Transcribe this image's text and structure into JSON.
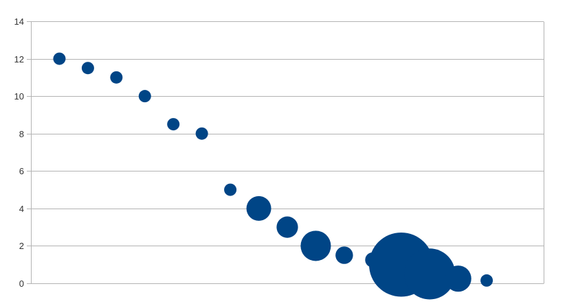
{
  "chart_data": {
    "type": "scatter",
    "title": "",
    "xlabel": "",
    "ylabel": "",
    "ylim": [
      0,
      14
    ],
    "xlim": [
      0,
      18
    ],
    "y_ticks": [
      "0",
      "2",
      "4",
      "6",
      "8",
      "10",
      "12",
      "14"
    ],
    "grid": true,
    "legend": "none",
    "point_color": "#004586",
    "grid_color": "#b3b3b3",
    "points": [
      {
        "x": 1,
        "y": 12,
        "size": 1
      },
      {
        "x": 2,
        "y": 11.5,
        "size": 1
      },
      {
        "x": 3,
        "y": 11,
        "size": 1
      },
      {
        "x": 4,
        "y": 10,
        "size": 1
      },
      {
        "x": 5,
        "y": 8.5,
        "size": 1
      },
      {
        "x": 6,
        "y": 8,
        "size": 1
      },
      {
        "x": 7,
        "y": 5,
        "size": 1
      },
      {
        "x": 8,
        "y": 4,
        "size": 4
      },
      {
        "x": 9,
        "y": 3,
        "size": 3
      },
      {
        "x": 10,
        "y": 2,
        "size": 6
      },
      {
        "x": 11,
        "y": 1.5,
        "size": 2
      },
      {
        "x": 12,
        "y": 1.25,
        "size": 1.5
      },
      {
        "x": 13,
        "y": 1,
        "size": 27
      },
      {
        "x": 14,
        "y": 0.5,
        "size": 17
      },
      {
        "x": 15,
        "y": 0.25,
        "size": 4.5
      },
      {
        "x": 16,
        "y": 0.15,
        "size": 1
      }
    ]
  }
}
